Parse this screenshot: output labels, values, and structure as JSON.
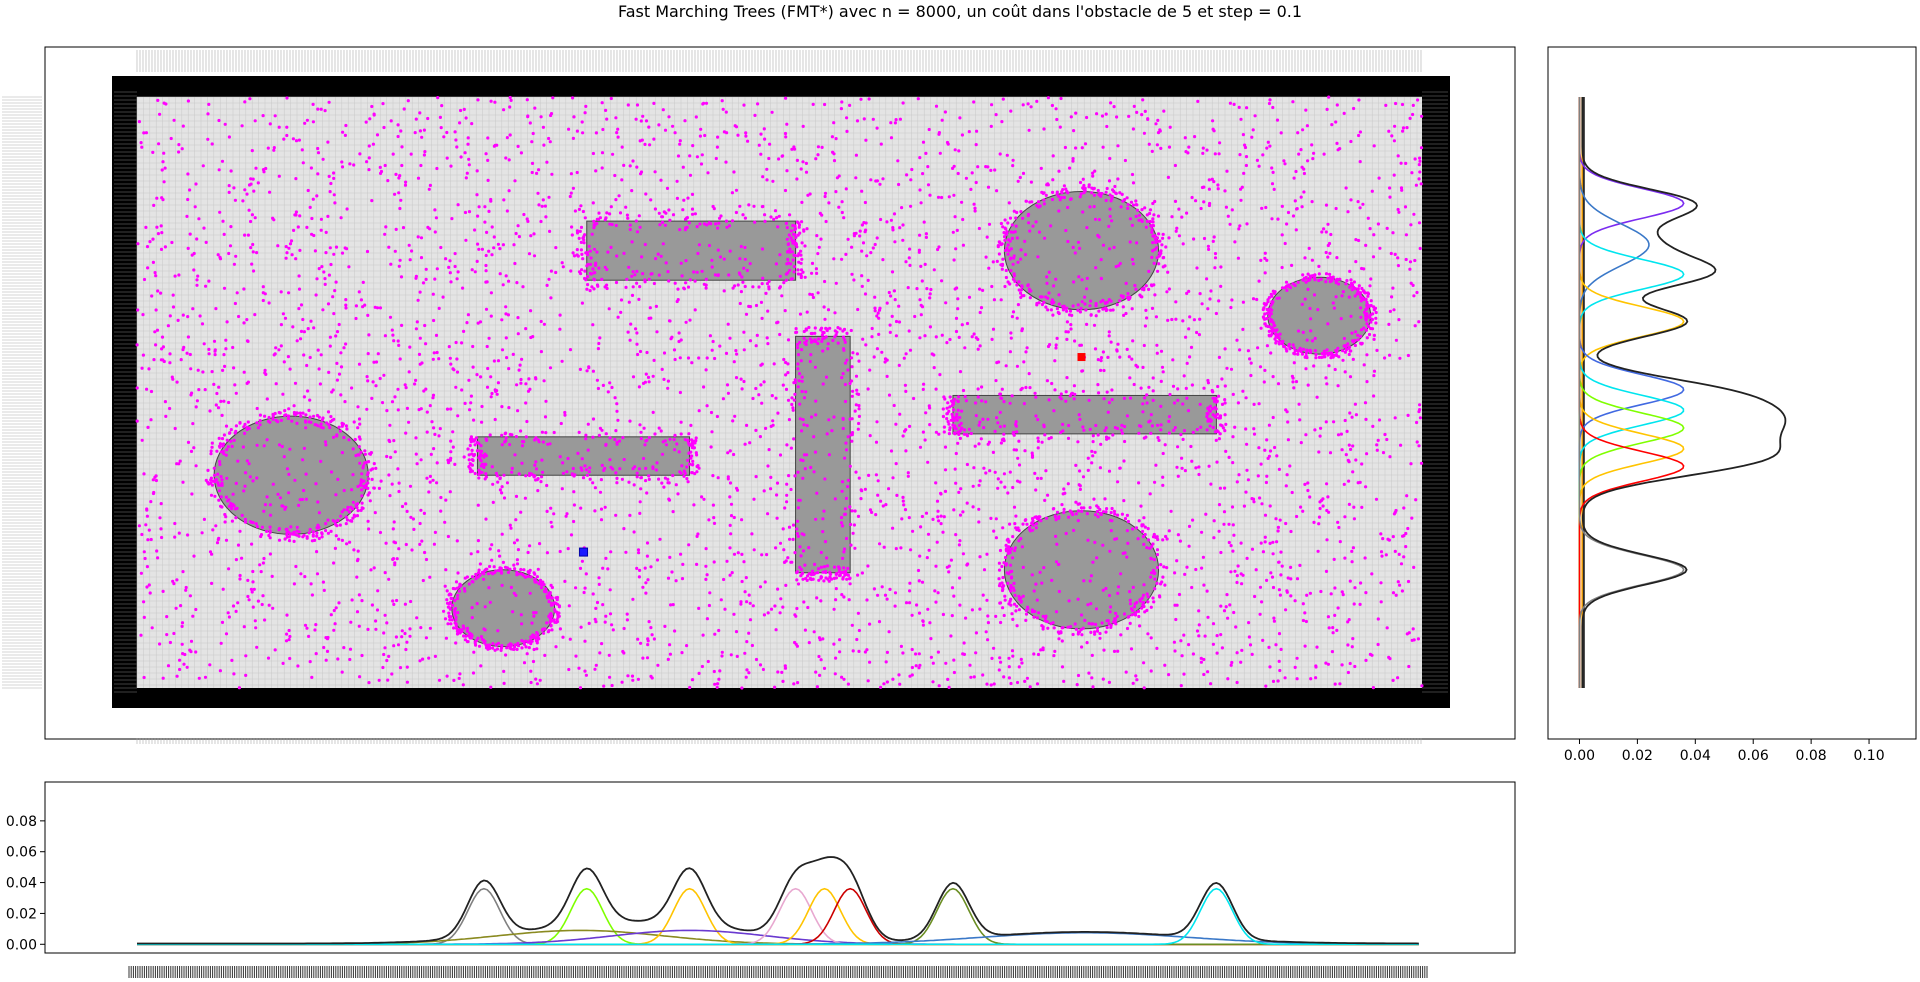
{
  "title": "Fast Marching Trees (FMT*) avec n = 8000, un coût dans l'obstacle de 5 et step = 0.1",
  "colors": {
    "background": "#ffffff",
    "grid_cell": "#e4e4e4",
    "grid_line": "#c8c8c8",
    "border": "#000000",
    "obstacle": "#999999",
    "obstacle_edge": "#444444",
    "sample_point": "#ff00ff",
    "start_marker": "#1a1aff",
    "goal_marker": "#ff0000"
  },
  "chart_data": [
    {
      "type": "scatter",
      "description_of_marks": "map with obstacles, grid and sampled nodes",
      "xlim": [
        0,
        20
      ],
      "ylim": [
        0,
        10
      ],
      "grid": true,
      "n_samples": 8000,
      "rectangles": [
        {
          "x0": 7.0,
          "y0": 6.9,
          "x1": 10.25,
          "y1": 7.9
        },
        {
          "x0": 5.3,
          "y0": 3.6,
          "x1": 8.6,
          "y1": 4.25
        },
        {
          "x0": 10.25,
          "y0": 1.95,
          "x1": 11.1,
          "y1": 5.95
        },
        {
          "x0": 12.7,
          "y0": 4.3,
          "x1": 16.8,
          "y1": 4.95
        }
      ],
      "ellipses": [
        {
          "cx": 14.7,
          "cy": 7.4,
          "rx": 1.2,
          "ry": 1.0
        },
        {
          "cx": 18.4,
          "cy": 6.3,
          "rx": 0.8,
          "ry": 0.65
        },
        {
          "cx": 2.4,
          "cy": 3.6,
          "rx": 1.2,
          "ry": 1.0
        },
        {
          "cx": 14.7,
          "cy": 2.0,
          "rx": 1.2,
          "ry": 1.0
        },
        {
          "cx": 5.7,
          "cy": 1.35,
          "rx": 0.8,
          "ry": 0.65
        }
      ],
      "start": {
        "x": 6.95,
        "y": 2.3
      },
      "goal": {
        "x": 14.7,
        "y": 5.6
      }
    },
    {
      "type": "line",
      "position": "right marginal density",
      "xlim": [
        -0.005,
        0.11
      ],
      "xticks": [
        0.0,
        0.02,
        0.04,
        0.06,
        0.08,
        0.1
      ],
      "xtick_labels": [
        "0.00",
        "0.02",
        "0.04",
        "0.06",
        "0.08",
        "0.10"
      ],
      "ylim": [
        0,
        10
      ],
      "components": [
        {
          "color": "#7b2cf0",
          "mu": 8.2,
          "sigma": 0.25,
          "amp": 0.036
        },
        {
          "color": "#3a78c8",
          "mu": 7.5,
          "sigma": 0.35,
          "amp": 0.024
        },
        {
          "color": "#00e5ee",
          "mu": 7.0,
          "sigma": 0.25,
          "amp": 0.036
        },
        {
          "color": "#ffc400",
          "mu": 6.2,
          "sigma": 0.25,
          "amp": 0.036
        },
        {
          "color": "#4169e1",
          "mu": 5.05,
          "sigma": 0.25,
          "amp": 0.036
        },
        {
          "color": "#00e5ee",
          "mu": 4.7,
          "sigma": 0.25,
          "amp": 0.036
        },
        {
          "color": "#7fff00",
          "mu": 4.4,
          "sigma": 0.25,
          "amp": 0.036
        },
        {
          "color": "#ffc400",
          "mu": 4.05,
          "sigma": 0.25,
          "amp": 0.036
        },
        {
          "color": "#ff0000",
          "mu": 3.75,
          "sigma": 0.25,
          "amp": 0.036
        },
        {
          "color": "#808080",
          "mu": 2.0,
          "sigma": 0.25,
          "amp": 0.036
        }
      ],
      "total_color": "#222222",
      "baseline_lines": [
        {
          "color": "#ffa500",
          "x": 0.001
        },
        {
          "color": "#1f6fd0",
          "x": 0.0
        },
        {
          "color": "#2a2a2a",
          "x": 0.0015
        }
      ]
    },
    {
      "type": "line",
      "position": "bottom marginal density",
      "xlim": [
        0,
        20
      ],
      "ylim": [
        -0.005,
        0.1
      ],
      "yticks": [
        0.0,
        0.02,
        0.04,
        0.06,
        0.08
      ],
      "ytick_labels": [
        "0.00",
        "0.02",
        "0.04",
        "0.06",
        "0.08"
      ],
      "components": [
        {
          "color": "#808080",
          "mu": 5.4,
          "sigma": 0.25,
          "amp": 0.036
        },
        {
          "color": "#7fff00",
          "mu": 7.0,
          "sigma": 0.25,
          "amp": 0.036
        },
        {
          "color": "#8a8a20",
          "mu": 6.9,
          "sigma": 1.3,
          "amp": 0.009
        },
        {
          "color": "#ffc400",
          "mu": 8.6,
          "sigma": 0.25,
          "amp": 0.036
        },
        {
          "color": "#6a3ad0",
          "mu": 8.6,
          "sigma": 1.2,
          "amp": 0.009
        },
        {
          "color": "#e8a8d0",
          "mu": 10.25,
          "sigma": 0.25,
          "amp": 0.036
        },
        {
          "color": "#ffc400",
          "mu": 10.7,
          "sigma": 0.25,
          "amp": 0.036
        },
        {
          "color": "#cc0000",
          "mu": 11.1,
          "sigma": 0.25,
          "amp": 0.036
        },
        {
          "color": "#6b8e23",
          "mu": 12.7,
          "sigma": 0.25,
          "amp": 0.036
        },
        {
          "color": "#3a78c8",
          "mu": 14.75,
          "sigma": 1.6,
          "amp": 0.0075
        },
        {
          "color": "#00e5ee",
          "mu": 16.8,
          "sigma": 0.25,
          "amp": 0.036
        }
      ],
      "total_color": "#222222"
    }
  ]
}
